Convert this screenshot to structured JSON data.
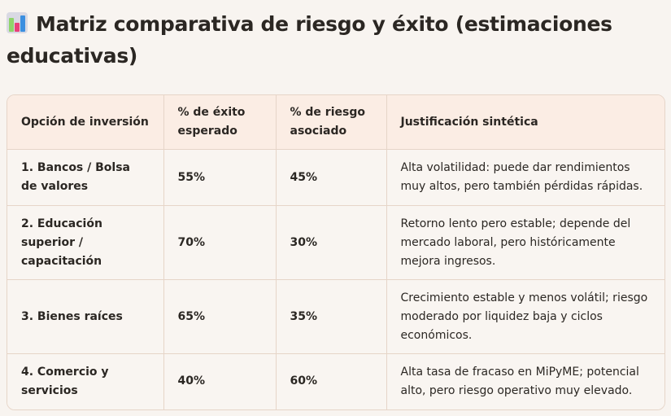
{
  "title": "Matriz comparativa de riesgo y éxito (estimaciones educativas)",
  "title_icon": "bar-chart-icon",
  "table": {
    "headers": [
      "Opción de inversión",
      "% de éxito esperado",
      "% de riesgo asociado",
      "Justificación sintética"
    ],
    "rows": [
      [
        "1. Bancos / Bolsa de valores",
        "55%",
        "45%",
        "Alta volatilidad: puede dar rendimientos muy altos, pero también pérdidas rápidas."
      ],
      [
        "2. Educación superior / capacitación",
        "70%",
        "30%",
        "Retorno lento pero estable; depende del mercado laboral, pero históricamente mejora ingresos."
      ],
      [
        "3. Bienes raíces",
        "65%",
        "35%",
        "Crecimiento estable y menos volátil; riesgo moderado por liquidez baja y ciclos económicos."
      ],
      [
        "4. Comercio y servicios",
        "40%",
        "60%",
        "Alta tasa de fracaso en MiPyME; potencial alto, pero riesgo operativo muy elevado."
      ]
    ]
  }
}
